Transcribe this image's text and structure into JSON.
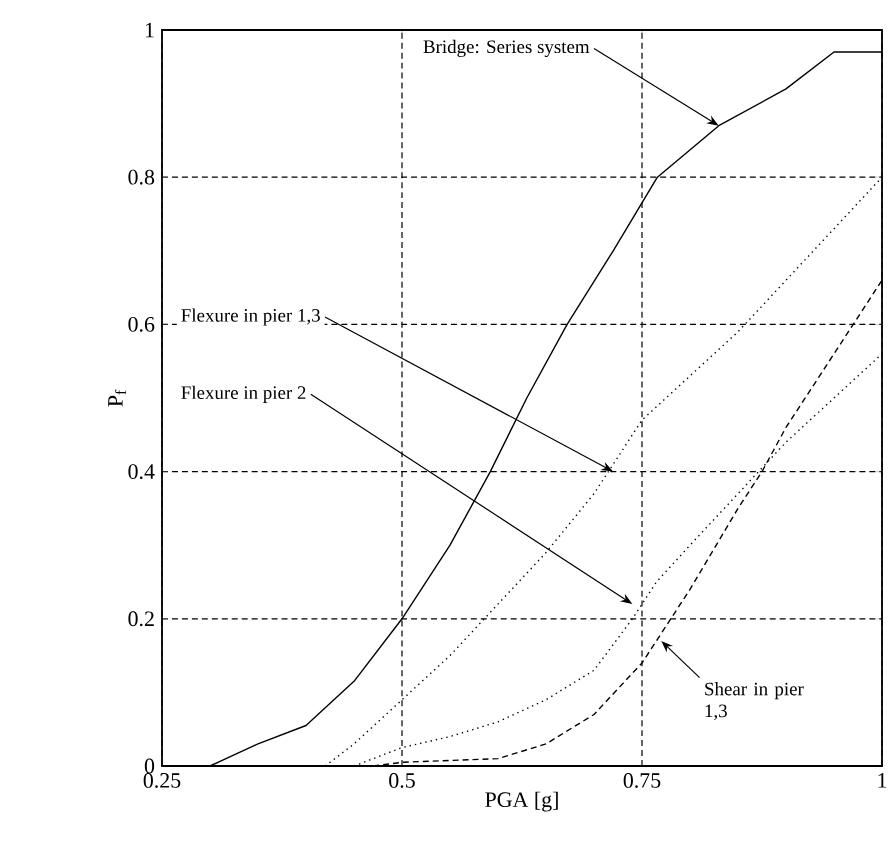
{
  "chart_data": {
    "type": "line",
    "xlabel": "PGA [g]",
    "ylabel": "P$_{f}$",
    "xlim": [
      0.25,
      1
    ],
    "ylim": [
      0,
      1
    ],
    "xticks": [
      0.25,
      0.5,
      0.75,
      1
    ],
    "yticks": [
      0,
      0.2,
      0.4,
      0.6,
      0.8,
      1
    ],
    "grid": true,
    "series": [
      {
        "color": "#000000",
        "line_style": "solid",
        "x": [
          0.3,
          0.35,
          0.4,
          0.45,
          0.5,
          0.55,
          0.592,
          0.63,
          0.672,
          0.72,
          0.766,
          0.83,
          0.9,
          0.95,
          1
        ],
        "values": [
          0,
          0.03,
          0.055,
          0.115,
          0.2,
          0.3,
          0.4,
          0.5,
          0.6,
          0.7,
          0.8,
          0.87,
          0.92,
          0.97,
          0.97
        ]
      },
      {
        "color": "#000000",
        "line_style": "dotted",
        "x": [
          0.42,
          0.45,
          0.5,
          0.55,
          0.6,
          0.65,
          0.7,
          0.75,
          0.8,
          0.85,
          0.9,
          0.95,
          1
        ],
        "values": [
          0,
          0.03,
          0.09,
          0.15,
          0.22,
          0.29,
          0.37,
          0.47,
          0.53,
          0.59,
          0.66,
          0.73,
          0.8
        ]
      },
      {
        "color": "#000000",
        "line_style": "dotted",
        "x": [
          0.45,
          0.5,
          0.55,
          0.6,
          0.65,
          0.7,
          0.74,
          0.765,
          0.8,
          0.85,
          0.9,
          0.95,
          1
        ],
        "values": [
          0,
          0.025,
          0.04,
          0.06,
          0.09,
          0.13,
          0.2,
          0.25,
          0.3,
          0.37,
          0.44,
          0.5,
          0.56
        ]
      },
      {
        "color": "#000000",
        "line_style": "dashed",
        "x": [
          0.47,
          0.5,
          0.6,
          0.65,
          0.7,
          0.75,
          0.8,
          0.85,
          0.875,
          0.9,
          0.95,
          1
        ],
        "values": [
          0,
          0.005,
          0.01,
          0.03,
          0.07,
          0.14,
          0.24,
          0.35,
          0.4,
          0.46,
          0.56,
          0.66
        ]
      }
    ],
    "annotations": [
      {
        "text": "Bridge: Series system",
        "x": 0.83,
        "y": 0.87
      },
      {
        "text": "Flexure in pier 1,3",
        "x": 0.72,
        "y": 0.4
      },
      {
        "text": "Flexure in pier 2",
        "x": 0.74,
        "y": 0.22
      },
      {
        "text": "Shear in pier 1,3",
        "x": 0.77,
        "y": 0.17
      }
    ]
  }
}
